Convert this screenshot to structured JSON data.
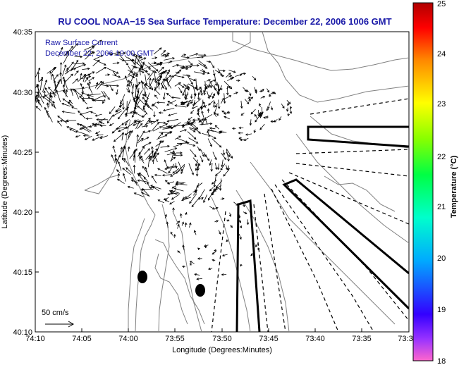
{
  "title": "RU COOL  NOAA−15  Sea Surface Temperature:  December 22, 2006 1006 GMT",
  "annotation": {
    "line1": "Raw Surface Current",
    "line2": "December 22, 2006 10:00 GMT"
  },
  "scale_label": "50 cm/s",
  "xlabel": "Longitude (Degrees:Minutes)",
  "ylabel": "Latitude (Degrees:Minutes)",
  "x_ticks": [
    "74:10",
    "74:05",
    "74:00",
    "73:55",
    "73:50",
    "73:45",
    "73:40",
    "73:35",
    "73:3"
  ],
  "y_ticks": [
    "40:35",
    "40:30",
    "40:25",
    "40:20",
    "40:15",
    "40:10"
  ],
  "colorbar": {
    "label": "Temperature (°C)",
    "ticks": [
      "25",
      "24",
      "23",
      "22",
      "21",
      "20",
      "19",
      "18"
    ]
  },
  "colors": {
    "title": "#1a1aa8",
    "coastline": "#808080",
    "vectors": "#000000"
  }
}
